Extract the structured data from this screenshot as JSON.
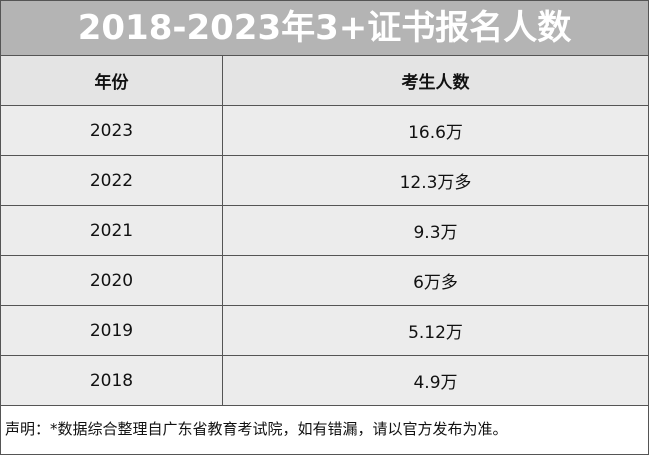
{
  "title": "2018-2023年3+证书报名人数",
  "table": {
    "columns": [
      "年份",
      "考生人数"
    ],
    "rows": [
      [
        "2023",
        "16.6万"
      ],
      [
        "2022",
        "12.3万多"
      ],
      [
        "2021",
        "9.3万"
      ],
      [
        "2020",
        "6万多"
      ],
      [
        "2019",
        "5.12万"
      ],
      [
        "2018",
        "4.9万"
      ]
    ]
  },
  "note": "声明：*数据综合整理自广东省教育考试院，如有错漏，请以官方发布为准。"
}
